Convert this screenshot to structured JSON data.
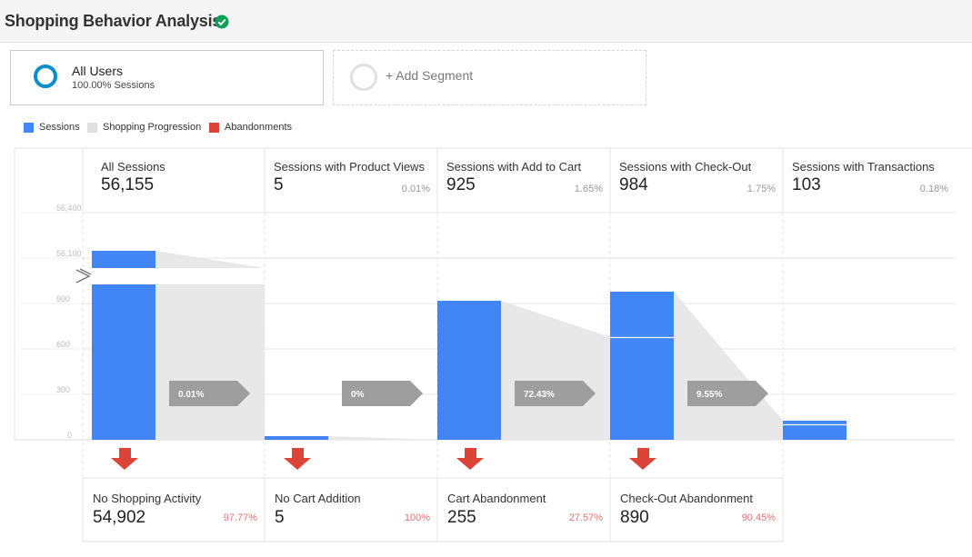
{
  "header": {
    "title": "Shopping Behavior Analysis",
    "verified_icon": "check-circle-icon"
  },
  "segments": [
    {
      "name": "All Users",
      "sub": "100.00% Sessions",
      "ring_color": "#0b8fc9"
    },
    {
      "name": "+ Add Segment"
    }
  ],
  "legend": [
    {
      "label": "Sessions",
      "color": "#4285f4"
    },
    {
      "label": "Shopping Progression",
      "color": "#e0e0e0"
    },
    {
      "label": "Abandonments",
      "color": "#db4437"
    }
  ],
  "y_axis": {
    "ticks": [
      "0",
      "300",
      "600",
      "900",
      "56,100",
      "56,400"
    ]
  },
  "stages": [
    {
      "label": "All Sessions",
      "value": "56,155",
      "pct": ""
    },
    {
      "label": "Sessions with Product Views",
      "value": "5",
      "pct": "0.01%"
    },
    {
      "label": "Sessions with Add to Cart",
      "value": "925",
      "pct": "1.65%"
    },
    {
      "label": "Sessions with Check-Out",
      "value": "984",
      "pct": "1.75%"
    },
    {
      "label": "Sessions with Transactions",
      "value": "103",
      "pct": "0.18%"
    }
  ],
  "progression": [
    "0.01%",
    "0%",
    "72.43%",
    "9.55%"
  ],
  "abandonments": [
    {
      "label": "No Shopping Activity",
      "value": "54,902",
      "pct": "97.77%"
    },
    {
      "label": "No Cart Addition",
      "value": "5",
      "pct": "100%"
    },
    {
      "label": "Cart Abandonment",
      "value": "255",
      "pct": "27.57%"
    },
    {
      "label": "Check-Out Abandonment",
      "value": "890",
      "pct": "90.45%"
    }
  ],
  "colors": {
    "sessions": "#4285f4",
    "progression": "#e0e0e0",
    "abandon": "#db4437",
    "arrow": "#9e9e9e"
  },
  "chart_data": {
    "type": "bar",
    "categories": [
      "All Sessions",
      "Sessions with Product Views",
      "Sessions with Add to Cart",
      "Sessions with Check-Out",
      "Sessions with Transactions"
    ],
    "values": [
      56155,
      5,
      925,
      984,
      103
    ],
    "ylim": [
      0,
      56400
    ],
    "axis_break": true
  }
}
